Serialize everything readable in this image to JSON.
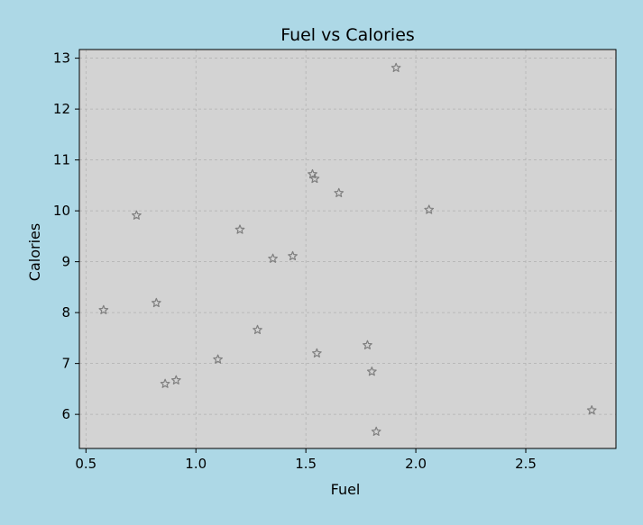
{
  "chart_data": {
    "type": "scatter",
    "title": "Fuel vs Calories",
    "xlabel": "Fuel",
    "ylabel": "Calories",
    "xlim": [
      0.47,
      2.91
    ],
    "ylim": [
      5.33,
      13.17
    ],
    "xticks": [
      0.5,
      1.0,
      1.5,
      2.0,
      2.5
    ],
    "xtick_labels": [
      "0.5",
      "1.0",
      "1.5",
      "2.0",
      "2.5"
    ],
    "yticks": [
      6,
      7,
      8,
      9,
      10,
      11,
      12,
      13
    ],
    "ytick_labels": [
      "6",
      "7",
      "8",
      "9",
      "10",
      "11",
      "12",
      "13"
    ],
    "grid": true,
    "marker": "star",
    "colors": {
      "background": "#add8e6",
      "plot_background": "#d3d3d3",
      "marker_stroke": "#7f7f7f",
      "grid": "#b0b0b0"
    },
    "points": [
      {
        "x": 0.58,
        "y": 8.05
      },
      {
        "x": 0.73,
        "y": 9.91
      },
      {
        "x": 0.82,
        "y": 8.19
      },
      {
        "x": 0.86,
        "y": 6.6
      },
      {
        "x": 0.91,
        "y": 6.67
      },
      {
        "x": 1.1,
        "y": 7.08
      },
      {
        "x": 1.2,
        "y": 9.63
      },
      {
        "x": 1.28,
        "y": 7.66
      },
      {
        "x": 1.35,
        "y": 9.06
      },
      {
        "x": 1.44,
        "y": 9.11
      },
      {
        "x": 1.53,
        "y": 10.72
      },
      {
        "x": 1.54,
        "y": 10.63
      },
      {
        "x": 1.55,
        "y": 7.2
      },
      {
        "x": 1.65,
        "y": 10.35
      },
      {
        "x": 1.78,
        "y": 7.36
      },
      {
        "x": 1.8,
        "y": 6.84
      },
      {
        "x": 1.82,
        "y": 5.66
      },
      {
        "x": 1.91,
        "y": 12.81
      },
      {
        "x": 2.06,
        "y": 10.02
      },
      {
        "x": 2.8,
        "y": 6.08
      }
    ]
  }
}
